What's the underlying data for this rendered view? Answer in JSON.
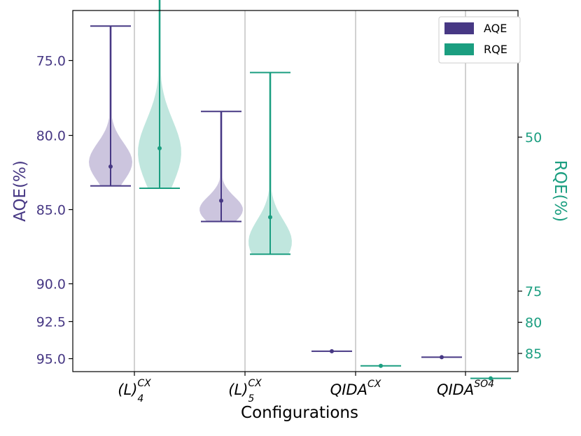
{
  "chart_data": {
    "type": "violin",
    "xlabel": "Configurations",
    "ylabel_left": "AQE(%)",
    "ylabel_right": "RQE(%)",
    "categories": [
      {
        "base": "(L)",
        "sub": "4",
        "sup": "CX"
      },
      {
        "base": "(L)",
        "sub": "5",
        "sup": "CX"
      },
      {
        "base": "QIDA",
        "sub": "",
        "sup": "CX"
      },
      {
        "base": "QIDA",
        "sub": "",
        "sup": "SO4"
      }
    ],
    "left_axis": {
      "inverted": true,
      "ticks": [
        {
          "value": 75.0,
          "label": "75.0"
        },
        {
          "value": 80.0,
          "label": "80.0"
        },
        {
          "value": 85.0,
          "label": "85.0"
        },
        {
          "value": 90.0,
          "label": "90.0"
        },
        {
          "value": 92.5,
          "label": "92.5"
        },
        {
          "value": 95.0,
          "label": "95.0"
        }
      ]
    },
    "right_axis": {
      "inverted": true,
      "ticks": [
        {
          "value": 50,
          "label": "50"
        },
        {
          "value": 75,
          "label": "75"
        },
        {
          "value": 80,
          "label": "80"
        },
        {
          "value": 85,
          "label": "85"
        }
      ]
    },
    "legend": {
      "position": "top-right",
      "entries": [
        "AQE",
        "RQE"
      ]
    },
    "colors": {
      "AQE": "#473884",
      "RQE": "#1b9e80",
      "AQE_fill": "#c9c2dc",
      "RQE_fill": "#bde5dc",
      "grid": "#b8b8b8"
    },
    "series": [
      {
        "name": "AQE",
        "axis": "left",
        "stats": [
          {
            "min": 72.7,
            "max": 83.4,
            "mean": 82.1,
            "peak": 81.8
          },
          {
            "min": 78.4,
            "max": 85.8,
            "mean": 84.4,
            "peak": 85.0
          },
          {
            "min": 94.5,
            "max": 94.5,
            "mean": 94.5,
            "peak": 94.5
          },
          {
            "min": 94.9,
            "max": 94.9,
            "mean": 94.9,
            "peak": 94.9
          }
        ]
      },
      {
        "name": "RQE",
        "axis": "right",
        "stats": [
          {
            "min": 14.5,
            "max": 58.3,
            "mean": 51.8,
            "peak": 52.5
          },
          {
            "min": 39.5,
            "max": 69.0,
            "mean": 63.0,
            "peak": 67.0
          },
          {
            "min": 87.0,
            "max": 87.0,
            "mean": 87.0,
            "peak": 87.0
          },
          {
            "min": 89.0,
            "max": 89.0,
            "mean": 89.0,
            "peak": 89.0
          }
        ]
      }
    ]
  }
}
